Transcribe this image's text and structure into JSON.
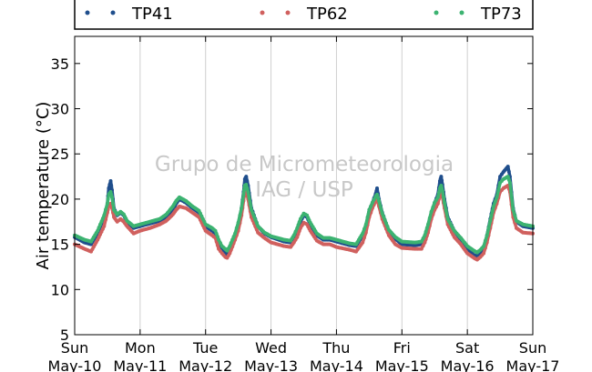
{
  "chart_data": {
    "type": "scatter",
    "ylabel": "Air temperature (°C)",
    "ylim": [
      5,
      38
    ],
    "yticks": [
      5,
      10,
      15,
      20,
      25,
      30,
      35
    ],
    "xlim": [
      0,
      7
    ],
    "xticks": [
      {
        "x": 0,
        "day": "Sun",
        "date": "May-10"
      },
      {
        "x": 1,
        "day": "Mon",
        "date": "May-11"
      },
      {
        "x": 2,
        "day": "Tue",
        "date": "May-12"
      },
      {
        "x": 3,
        "day": "Wed",
        "date": "May-13"
      },
      {
        "x": 4,
        "day": "Thu",
        "date": "May-14"
      },
      {
        "x": 5,
        "day": "Fri",
        "date": "May-15"
      },
      {
        "x": 6,
        "day": "Sat",
        "date": "May-16"
      },
      {
        "x": 7,
        "day": "Sun",
        "date": "May-17"
      }
    ],
    "grid": "x-only",
    "legend_placement": "top",
    "watermark": [
      "Grupo de Micrometeorologia",
      "IAG / USP"
    ],
    "series": [
      {
        "name": "TP41",
        "color": "#1f4e8c",
        "points": [
          [
            0,
            15.8
          ],
          [
            0.15,
            15.2
          ],
          [
            0.25,
            15.0
          ],
          [
            0.35,
            16.2
          ],
          [
            0.45,
            18.0
          ],
          [
            0.5,
            19.5
          ],
          [
            0.52,
            21.2
          ],
          [
            0.55,
            22.0
          ],
          [
            0.57,
            21.0
          ],
          [
            0.6,
            19.0
          ],
          [
            0.65,
            18.2
          ],
          [
            0.7,
            18.5
          ],
          [
            0.75,
            18.2
          ],
          [
            0.8,
            17.5
          ],
          [
            0.9,
            16.8
          ],
          [
            1.0,
            17.0
          ],
          [
            1.15,
            17.3
          ],
          [
            1.3,
            17.6
          ],
          [
            1.4,
            18.0
          ],
          [
            1.5,
            18.8
          ],
          [
            1.55,
            19.5
          ],
          [
            1.6,
            20.0
          ],
          [
            1.7,
            19.6
          ],
          [
            1.8,
            19.0
          ],
          [
            1.9,
            18.5
          ],
          [
            2.0,
            17.0
          ],
          [
            2.1,
            16.5
          ],
          [
            2.15,
            16.2
          ],
          [
            2.2,
            15.0
          ],
          [
            2.25,
            14.3
          ],
          [
            2.3,
            14.0
          ],
          [
            2.33,
            13.8
          ],
          [
            2.37,
            14.5
          ],
          [
            2.45,
            16.0
          ],
          [
            2.5,
            17.2
          ],
          [
            2.55,
            19.0
          ],
          [
            2.58,
            20.8
          ],
          [
            2.6,
            22.2
          ],
          [
            2.62,
            22.5
          ],
          [
            2.65,
            21.5
          ],
          [
            2.7,
            19.0
          ],
          [
            2.8,
            17.0
          ],
          [
            2.9,
            16.2
          ],
          [
            3.0,
            15.8
          ],
          [
            3.2,
            15.3
          ],
          [
            3.3,
            15.2
          ],
          [
            3.35,
            15.8
          ],
          [
            3.4,
            16.5
          ],
          [
            3.45,
            17.5
          ],
          [
            3.5,
            18.2
          ],
          [
            3.55,
            18.0
          ],
          [
            3.6,
            17.2
          ],
          [
            3.7,
            16.0
          ],
          [
            3.8,
            15.5
          ],
          [
            3.9,
            15.5
          ],
          [
            4.0,
            15.3
          ],
          [
            4.2,
            14.9
          ],
          [
            4.3,
            14.8
          ],
          [
            4.4,
            16.0
          ],
          [
            4.45,
            17.0
          ],
          [
            4.5,
            18.8
          ],
          [
            4.55,
            19.6
          ],
          [
            4.6,
            20.6
          ],
          [
            4.62,
            21.2
          ],
          [
            4.65,
            20.0
          ],
          [
            4.7,
            18.5
          ],
          [
            4.8,
            16.5
          ],
          [
            4.9,
            15.6
          ],
          [
            5.0,
            15.0
          ],
          [
            5.2,
            14.9
          ],
          [
            5.3,
            15.0
          ],
          [
            5.35,
            15.8
          ],
          [
            5.4,
            17.0
          ],
          [
            5.45,
            18.5
          ],
          [
            5.5,
            19.6
          ],
          [
            5.55,
            20.5
          ],
          [
            5.58,
            22.0
          ],
          [
            5.6,
            22.5
          ],
          [
            5.62,
            21.6
          ],
          [
            5.65,
            20.0
          ],
          [
            5.7,
            18.0
          ],
          [
            5.8,
            16.5
          ],
          [
            5.9,
            15.5
          ],
          [
            6.0,
            14.5
          ],
          [
            6.1,
            13.8
          ],
          [
            6.15,
            13.7
          ],
          [
            6.2,
            14.0
          ],
          [
            6.25,
            14.5
          ],
          [
            6.3,
            16.0
          ],
          [
            6.35,
            17.8
          ],
          [
            6.4,
            19.5
          ],
          [
            6.45,
            20.5
          ],
          [
            6.5,
            22.5
          ],
          [
            6.55,
            23.0
          ],
          [
            6.62,
            23.6
          ],
          [
            6.65,
            22.5
          ],
          [
            6.7,
            19.0
          ],
          [
            6.75,
            17.5
          ],
          [
            6.85,
            17.0
          ],
          [
            7.0,
            16.8
          ]
        ]
      },
      {
        "name": "TP62",
        "color": "#d0605e",
        "points": [
          [
            0,
            15.0
          ],
          [
            0.15,
            14.5
          ],
          [
            0.25,
            14.2
          ],
          [
            0.35,
            15.5
          ],
          [
            0.45,
            17.0
          ],
          [
            0.5,
            18.5
          ],
          [
            0.52,
            19.2
          ],
          [
            0.55,
            19.5
          ],
          [
            0.57,
            19.0
          ],
          [
            0.6,
            18.0
          ],
          [
            0.65,
            17.5
          ],
          [
            0.7,
            17.8
          ],
          [
            0.75,
            17.5
          ],
          [
            0.8,
            17.0
          ],
          [
            0.9,
            16.2
          ],
          [
            1.0,
            16.5
          ],
          [
            1.15,
            16.8
          ],
          [
            1.3,
            17.2
          ],
          [
            1.4,
            17.6
          ],
          [
            1.5,
            18.3
          ],
          [
            1.55,
            18.8
          ],
          [
            1.6,
            19.2
          ],
          [
            1.7,
            19.0
          ],
          [
            1.8,
            18.5
          ],
          [
            1.9,
            18.0
          ],
          [
            2.0,
            16.5
          ],
          [
            2.1,
            16.0
          ],
          [
            2.15,
            15.7
          ],
          [
            2.2,
            14.5
          ],
          [
            2.25,
            14.0
          ],
          [
            2.3,
            13.6
          ],
          [
            2.33,
            13.5
          ],
          [
            2.37,
            14.0
          ],
          [
            2.45,
            15.5
          ],
          [
            2.5,
            16.5
          ],
          [
            2.55,
            18.2
          ],
          [
            2.58,
            19.8
          ],
          [
            2.6,
            20.8
          ],
          [
            2.62,
            20.8
          ],
          [
            2.65,
            20.0
          ],
          [
            2.7,
            18.0
          ],
          [
            2.8,
            16.3
          ],
          [
            2.9,
            15.7
          ],
          [
            3.0,
            15.2
          ],
          [
            3.2,
            14.8
          ],
          [
            3.3,
            14.7
          ],
          [
            3.35,
            15.2
          ],
          [
            3.4,
            15.8
          ],
          [
            3.45,
            16.8
          ],
          [
            3.5,
            17.4
          ],
          [
            3.55,
            17.2
          ],
          [
            3.6,
            16.5
          ],
          [
            3.7,
            15.4
          ],
          [
            3.8,
            15.0
          ],
          [
            3.9,
            15.0
          ],
          [
            4.0,
            14.7
          ],
          [
            4.2,
            14.4
          ],
          [
            4.3,
            14.2
          ],
          [
            4.4,
            15.2
          ],
          [
            4.45,
            16.3
          ],
          [
            4.5,
            18.0
          ],
          [
            4.55,
            19.0
          ],
          [
            4.6,
            19.8
          ],
          [
            4.62,
            20.0
          ],
          [
            4.65,
            19.2
          ],
          [
            4.7,
            17.8
          ],
          [
            4.8,
            16.0
          ],
          [
            4.9,
            15.0
          ],
          [
            5.0,
            14.6
          ],
          [
            5.2,
            14.5
          ],
          [
            5.3,
            14.5
          ],
          [
            5.35,
            15.2
          ],
          [
            5.4,
            16.3
          ],
          [
            5.45,
            17.8
          ],
          [
            5.5,
            18.8
          ],
          [
            5.55,
            19.5
          ],
          [
            5.58,
            20.5
          ],
          [
            5.6,
            20.8
          ],
          [
            5.62,
            20.2
          ],
          [
            5.65,
            19.0
          ],
          [
            5.7,
            17.2
          ],
          [
            5.8,
            15.8
          ],
          [
            5.9,
            15.0
          ],
          [
            6.0,
            14.0
          ],
          [
            6.1,
            13.5
          ],
          [
            6.15,
            13.3
          ],
          [
            6.2,
            13.6
          ],
          [
            6.25,
            14.0
          ],
          [
            6.3,
            15.2
          ],
          [
            6.35,
            16.8
          ],
          [
            6.4,
            18.5
          ],
          [
            6.45,
            19.5
          ],
          [
            6.5,
            20.8
          ],
          [
            6.55,
            21.2
          ],
          [
            6.62,
            21.5
          ],
          [
            6.65,
            20.8
          ],
          [
            6.7,
            18.0
          ],
          [
            6.75,
            16.8
          ],
          [
            6.85,
            16.3
          ],
          [
            7.0,
            16.2
          ]
        ]
      },
      {
        "name": "TP73",
        "color": "#3cb371",
        "points": [
          [
            0,
            16.0
          ],
          [
            0.15,
            15.5
          ],
          [
            0.25,
            15.3
          ],
          [
            0.35,
            16.5
          ],
          [
            0.45,
            18.2
          ],
          [
            0.5,
            19.5
          ],
          [
            0.52,
            20.5
          ],
          [
            0.55,
            20.8
          ],
          [
            0.57,
            20.2
          ],
          [
            0.6,
            18.8
          ],
          [
            0.65,
            18.3
          ],
          [
            0.7,
            18.6
          ],
          [
            0.75,
            18.3
          ],
          [
            0.8,
            17.6
          ],
          [
            0.9,
            17.0
          ],
          [
            1.0,
            17.2
          ],
          [
            1.15,
            17.5
          ],
          [
            1.3,
            17.8
          ],
          [
            1.4,
            18.3
          ],
          [
            1.5,
            19.2
          ],
          [
            1.55,
            19.8
          ],
          [
            1.6,
            20.2
          ],
          [
            1.7,
            19.8
          ],
          [
            1.8,
            19.2
          ],
          [
            1.9,
            18.7
          ],
          [
            2.0,
            17.2
          ],
          [
            2.1,
            16.8
          ],
          [
            2.15,
            16.5
          ],
          [
            2.2,
            15.5
          ],
          [
            2.25,
            14.8
          ],
          [
            2.3,
            14.5
          ],
          [
            2.33,
            14.3
          ],
          [
            2.37,
            14.8
          ],
          [
            2.45,
            16.2
          ],
          [
            2.5,
            17.4
          ],
          [
            2.55,
            19.0
          ],
          [
            2.58,
            20.5
          ],
          [
            2.6,
            21.5
          ],
          [
            2.62,
            21.6
          ],
          [
            2.65,
            20.8
          ],
          [
            2.7,
            18.8
          ],
          [
            2.8,
            17.0
          ],
          [
            2.9,
            16.3
          ],
          [
            3.0,
            15.9
          ],
          [
            3.2,
            15.5
          ],
          [
            3.3,
            15.4
          ],
          [
            3.35,
            16.0
          ],
          [
            3.4,
            16.8
          ],
          [
            3.45,
            17.8
          ],
          [
            3.5,
            18.4
          ],
          [
            3.55,
            18.2
          ],
          [
            3.6,
            17.4
          ],
          [
            3.7,
            16.2
          ],
          [
            3.8,
            15.7
          ],
          [
            3.9,
            15.7
          ],
          [
            4.0,
            15.5
          ],
          [
            4.2,
            15.1
          ],
          [
            4.3,
            15.0
          ],
          [
            4.4,
            16.2
          ],
          [
            4.45,
            17.2
          ],
          [
            4.5,
            18.8
          ],
          [
            4.55,
            19.6
          ],
          [
            4.6,
            20.3
          ],
          [
            4.62,
            20.5
          ],
          [
            4.65,
            19.8
          ],
          [
            4.7,
            18.4
          ],
          [
            4.8,
            16.6
          ],
          [
            4.9,
            15.8
          ],
          [
            5.0,
            15.3
          ],
          [
            5.2,
            15.2
          ],
          [
            5.3,
            15.3
          ],
          [
            5.35,
            16.0
          ],
          [
            5.4,
            17.2
          ],
          [
            5.45,
            18.6
          ],
          [
            5.5,
            19.6
          ],
          [
            5.55,
            20.2
          ],
          [
            5.58,
            21.2
          ],
          [
            5.6,
            21.5
          ],
          [
            5.62,
            20.9
          ],
          [
            5.65,
            19.6
          ],
          [
            5.7,
            17.8
          ],
          [
            5.8,
            16.5
          ],
          [
            5.9,
            15.7
          ],
          [
            6.0,
            14.8
          ],
          [
            6.1,
            14.3
          ],
          [
            6.15,
            14.1
          ],
          [
            6.2,
            14.4
          ],
          [
            6.25,
            14.8
          ],
          [
            6.3,
            16.0
          ],
          [
            6.35,
            17.6
          ],
          [
            6.4,
            19.2
          ],
          [
            6.45,
            20.2
          ],
          [
            6.5,
            21.8
          ],
          [
            6.55,
            22.2
          ],
          [
            6.62,
            22.5
          ],
          [
            6.65,
            21.8
          ],
          [
            6.7,
            18.8
          ],
          [
            6.75,
            17.6
          ],
          [
            6.85,
            17.2
          ],
          [
            7.0,
            17.0
          ]
        ]
      }
    ]
  }
}
